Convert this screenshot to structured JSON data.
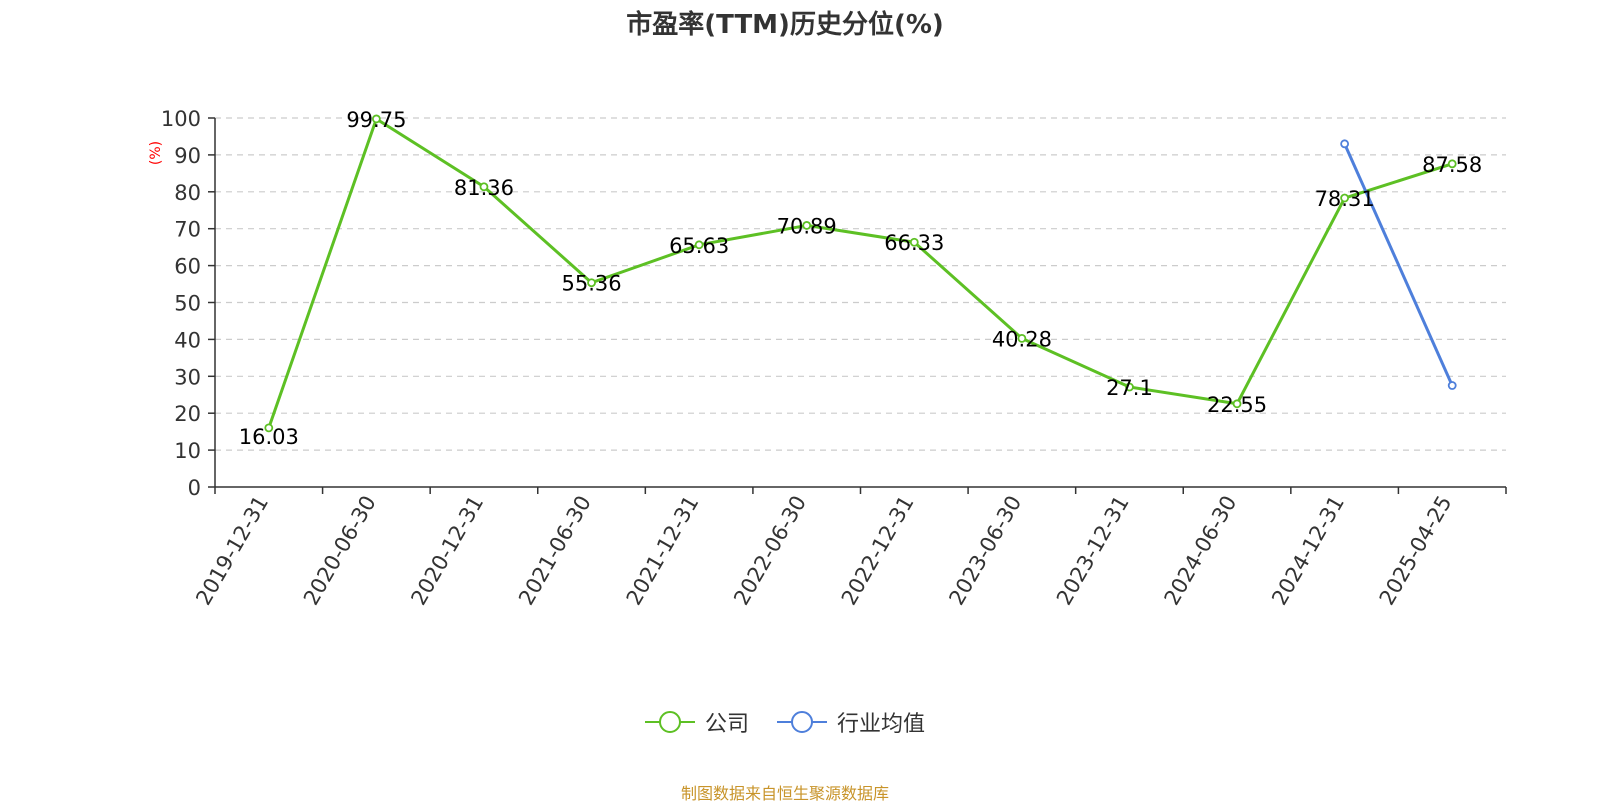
{
  "chart_data": {
    "type": "line",
    "title": "市盈率(TTM)历史分位(%)",
    "ylabel": "(%)",
    "xlabel": "",
    "ylim": [
      0,
      100
    ],
    "yticks": [
      0,
      10,
      20,
      30,
      40,
      50,
      60,
      70,
      80,
      90,
      100
    ],
    "grid": true,
    "legend_position": "bottom",
    "categories": [
      "2019-12-31",
      "2020-06-30",
      "2020-12-31",
      "2021-06-30",
      "2021-12-31",
      "2022-06-30",
      "2022-12-31",
      "2023-06-30",
      "2023-12-31",
      "2024-06-30",
      "2024-12-31",
      "2025-04-25"
    ],
    "series": [
      {
        "name": "公司",
        "color": "#5dc024",
        "values": [
          16.03,
          99.75,
          81.36,
          55.36,
          65.63,
          70.89,
          66.33,
          40.28,
          27.1,
          22.55,
          78.31,
          87.58
        ],
        "labels": [
          "16.03",
          "99.75",
          "81.36",
          "55.36",
          "65.63",
          "70.89",
          "66.33",
          "40.28",
          "27.1",
          "22.55",
          "78.31",
          "87.58"
        ]
      },
      {
        "name": "行业均值",
        "color": "#4e7fdb",
        "values": [
          null,
          null,
          null,
          null,
          null,
          null,
          null,
          null,
          null,
          null,
          93,
          27.5
        ]
      }
    ]
  },
  "source_text": "制图数据来自恒生聚源数据库"
}
